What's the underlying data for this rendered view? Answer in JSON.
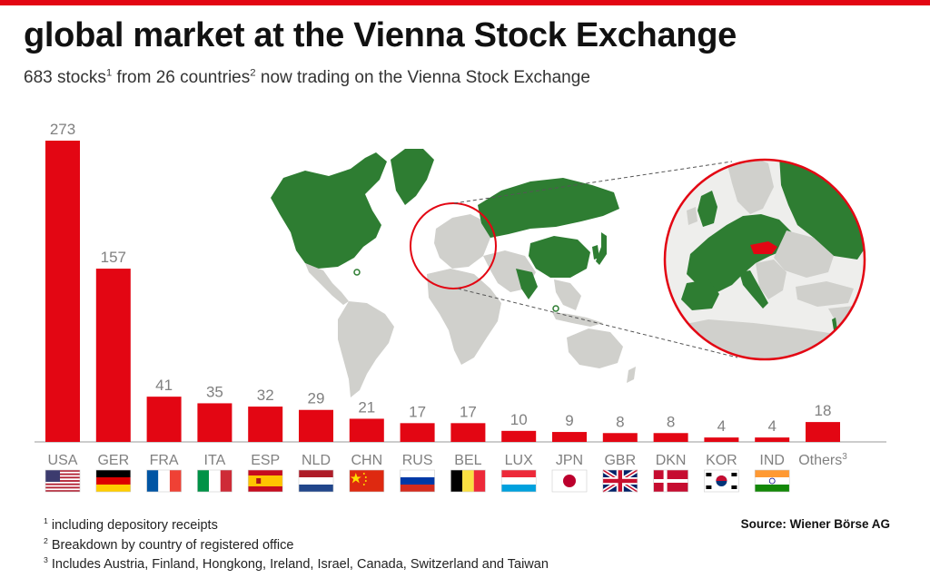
{
  "header": {
    "title": "global market at the Vienna Stock Exchange",
    "subtitle_stocks": "683 stocks",
    "subtitle_sup1": "1",
    "subtitle_from": " from 26 countries",
    "subtitle_sup2": "2",
    "subtitle_rest": " now trading on the Vienna Stock Exchange"
  },
  "chart_data": {
    "type": "bar",
    "categories": [
      "USA",
      "GER",
      "FRA",
      "ITA",
      "ESP",
      "NLD",
      "CHN",
      "RUS",
      "BEL",
      "LUX",
      "JPN",
      "GBR",
      "DKN",
      "KOR",
      "IND",
      "Others"
    ],
    "values": [
      273,
      157,
      41,
      35,
      32,
      29,
      21,
      17,
      17,
      10,
      9,
      8,
      8,
      4,
      4,
      18
    ],
    "last_category_sup": "3",
    "bar_color": "#e30613",
    "value_label_color": "#808080",
    "category_label_color": "#808080",
    "grid": false,
    "ylim": [
      0,
      273
    ]
  },
  "flags": [
    "usa-flag-icon",
    "germany-flag-icon",
    "france-flag-icon",
    "italy-flag-icon",
    "spain-flag-icon",
    "netherlands-flag-icon",
    "china-flag-icon",
    "russia-flag-icon",
    "belgium-flag-icon",
    "luxembourg-flag-icon",
    "japan-flag-icon",
    "uk-flag-icon",
    "denmark-flag-icon",
    "korea-flag-icon",
    "india-flag-icon"
  ],
  "map": {
    "highlight_color": "#2e7d32",
    "land_color": "#d0d0cc",
    "austria_color": "#e30613",
    "zoom_ring_color": "#e30613"
  },
  "footnotes": [
    {
      "mark": "1",
      "text": " including depository receipts"
    },
    {
      "mark": "2",
      "text": " Breakdown by country of registered office"
    },
    {
      "mark": "3",
      "text": " Includes Austria, Finland, Hongkong, Ireland, Israel, Canada, Switzerland and Taiwan"
    }
  ],
  "source": "Source: Wiener Börse AG"
}
